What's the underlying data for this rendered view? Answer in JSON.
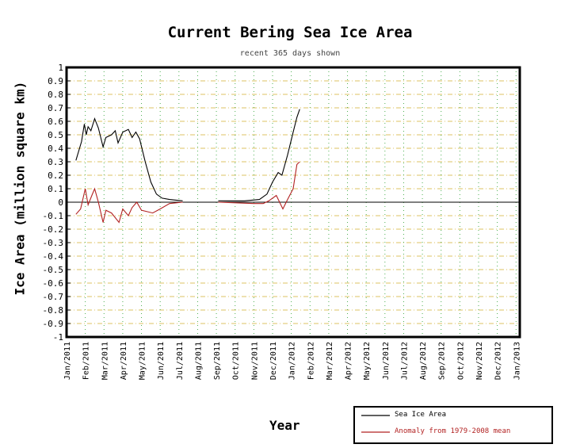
{
  "chart_data": {
    "type": "line",
    "title": "Current Bering Sea Ice Area",
    "subtitle": "recent 365 days shown",
    "xlabel": "Year",
    "ylabel": "Ice Area (million square km)",
    "ylim": [
      -1,
      1
    ],
    "yticks": [
      "1",
      "0.9",
      "0.8",
      "0.7",
      "0.6",
      "0.5",
      "0.4",
      "0.3",
      "0.2",
      "0.1",
      "0",
      "-0.1",
      "-0.2",
      "-0.3",
      "-0.4",
      "-0.5",
      "-0.6",
      "-0.7",
      "-0.8",
      "-0.9",
      "-1"
    ],
    "xticks": [
      "Jan/2011",
      "Feb/2011",
      "Mar/2011",
      "Apr/2011",
      "May/2011",
      "Jun/2011",
      "Jul/2011",
      "Aug/2011",
      "Sep/2011",
      "Oct/2011",
      "Nov/2011",
      "Dec/2011",
      "Jan/2012",
      "Feb/2012",
      "Mar/2012",
      "Apr/2012",
      "May/2012",
      "Jun/2012",
      "Jul/2012",
      "Aug/2012",
      "Sep/2012",
      "Oct/2012",
      "Nov/2012",
      "Dec/2012",
      "Jan/2013"
    ],
    "x_unit": "months since Jan 2011",
    "grid": true,
    "legend_placement": "bottom-right",
    "series": [
      {
        "name": "Sea Ice Area",
        "color": "#000000",
        "segments": [
          [
            [
              0.5,
              0.31
            ],
            [
              0.65,
              0.38
            ],
            [
              0.8,
              0.45
            ],
            [
              0.95,
              0.58
            ],
            [
              1.05,
              0.5
            ],
            [
              1.15,
              0.56
            ],
            [
              1.3,
              0.53
            ],
            [
              1.5,
              0.62
            ],
            [
              1.7,
              0.55
            ],
            [
              1.95,
              0.41
            ],
            [
              2.1,
              0.48
            ],
            [
              2.4,
              0.5
            ],
            [
              2.6,
              0.53
            ],
            [
              2.75,
              0.44
            ],
            [
              3.0,
              0.52
            ],
            [
              3.3,
              0.54
            ],
            [
              3.5,
              0.48
            ],
            [
              3.7,
              0.52
            ],
            [
              3.9,
              0.47
            ],
            [
              4.2,
              0.3
            ],
            [
              4.5,
              0.15
            ],
            [
              4.8,
              0.06
            ],
            [
              5.1,
              0.03
            ],
            [
              5.5,
              0.02
            ],
            [
              6.2,
              0.01
            ]
          ],
          [
            [
              8.1,
              0.01
            ],
            [
              9.5,
              0.01
            ],
            [
              10.3,
              0.02
            ],
            [
              10.7,
              0.06
            ],
            [
              11.0,
              0.15
            ],
            [
              11.3,
              0.22
            ],
            [
              11.5,
              0.2
            ],
            [
              11.8,
              0.35
            ],
            [
              12.1,
              0.52
            ],
            [
              12.3,
              0.63
            ],
            [
              12.45,
              0.69
            ]
          ]
        ]
      },
      {
        "name": "Anomaly from 1979-2008 mean",
        "color": "#b22222",
        "segments": [
          [
            [
              0.5,
              -0.09
            ],
            [
              0.75,
              -0.05
            ],
            [
              1.0,
              0.1
            ],
            [
              1.15,
              -0.02
            ],
            [
              1.35,
              0.05
            ],
            [
              1.5,
              0.1
            ],
            [
              1.7,
              0.0
            ],
            [
              1.95,
              -0.15
            ],
            [
              2.1,
              -0.06
            ],
            [
              2.4,
              -0.08
            ],
            [
              2.8,
              -0.15
            ],
            [
              3.0,
              -0.05
            ],
            [
              3.3,
              -0.1
            ],
            [
              3.5,
              -0.04
            ],
            [
              3.75,
              0.0
            ],
            [
              4.0,
              -0.06
            ],
            [
              4.6,
              -0.08
            ],
            [
              5.0,
              -0.05
            ],
            [
              5.5,
              -0.01
            ],
            [
              6.2,
              0.0
            ]
          ],
          [
            [
              8.1,
              0.0
            ],
            [
              10.0,
              -0.01
            ],
            [
              10.5,
              -0.01
            ],
            [
              10.8,
              0.01
            ],
            [
              11.2,
              0.05
            ],
            [
              11.55,
              -0.05
            ],
            [
              11.8,
              0.02
            ],
            [
              12.1,
              0.1
            ],
            [
              12.3,
              0.28
            ],
            [
              12.45,
              0.3
            ]
          ]
        ]
      }
    ]
  }
}
